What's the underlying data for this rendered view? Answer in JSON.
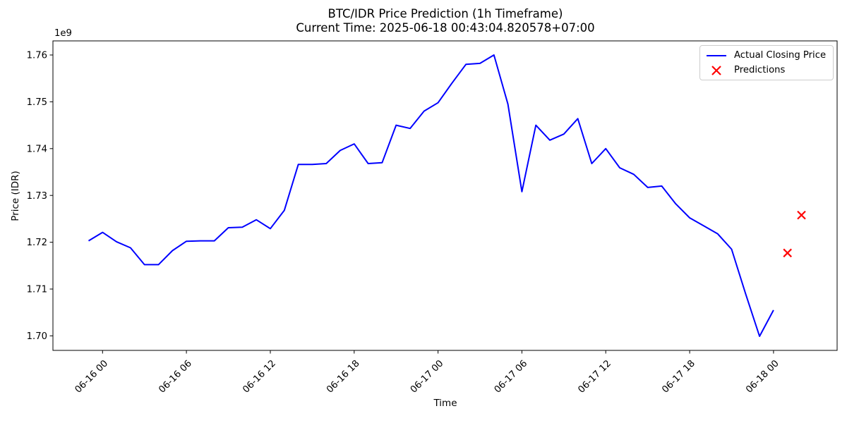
{
  "figure": {
    "background": "#ffffff",
    "spine_color": "#000000"
  },
  "chart_data": {
    "type": "line",
    "title_lines": [
      "BTC/IDR Price Prediction (1h Timeframe)",
      "Current Time: 2025-06-18 00:43:04.820578+07:00"
    ],
    "xlabel": "Time",
    "ylabel": "Price (IDR)",
    "y_offset_label": "1e9",
    "grid": false,
    "legend_position": "upper right",
    "x_tick_labels": [
      "06-16 00",
      "06-16 06",
      "06-16 12",
      "06-16 18",
      "06-17 00",
      "06-17 06",
      "06-17 12",
      "06-17 18",
      "06-18 00"
    ],
    "x_tick_interval_hours": 6,
    "y_tick_labels": [
      "1.70",
      "1.71",
      "1.72",
      "1.73",
      "1.74",
      "1.75",
      "1.76"
    ],
    "ylim": [
      1697000000,
      1763000000
    ],
    "series": [
      {
        "name": "Actual Closing Price",
        "style": "line",
        "color": "#0000ff",
        "x": [
          "2025-06-15T23:00",
          "2025-06-16T00:00",
          "2025-06-16T01:00",
          "2025-06-16T02:00",
          "2025-06-16T03:00",
          "2025-06-16T04:00",
          "2025-06-16T05:00",
          "2025-06-16T06:00",
          "2025-06-16T07:00",
          "2025-06-16T08:00",
          "2025-06-16T09:00",
          "2025-06-16T10:00",
          "2025-06-16T11:00",
          "2025-06-16T12:00",
          "2025-06-16T13:00",
          "2025-06-16T14:00",
          "2025-06-16T15:00",
          "2025-06-16T16:00",
          "2025-06-16T17:00",
          "2025-06-16T18:00",
          "2025-06-16T19:00",
          "2025-06-16T20:00",
          "2025-06-16T21:00",
          "2025-06-16T22:00",
          "2025-06-16T23:00",
          "2025-06-17T00:00",
          "2025-06-17T01:00",
          "2025-06-17T02:00",
          "2025-06-17T03:00",
          "2025-06-17T04:00",
          "2025-06-17T05:00",
          "2025-06-17T06:00",
          "2025-06-17T07:00",
          "2025-06-17T08:00",
          "2025-06-17T09:00",
          "2025-06-17T10:00",
          "2025-06-17T11:00",
          "2025-06-17T12:00",
          "2025-06-17T13:00",
          "2025-06-17T14:00",
          "2025-06-17T15:00",
          "2025-06-17T16:00",
          "2025-06-17T17:00",
          "2025-06-17T18:00",
          "2025-06-17T19:00",
          "2025-06-17T20:00",
          "2025-06-17T21:00",
          "2025-06-17T22:00",
          "2025-06-17T23:00",
          "2025-06-18T00:00"
        ],
        "y": [
          1720300000,
          1722100000,
          1720100000,
          1718800000,
          1715200000,
          1715200000,
          1718200000,
          1720200000,
          1720300000,
          1720300000,
          1723100000,
          1723200000,
          1724800000,
          1722900000,
          1726800000,
          1736600000,
          1736600000,
          1736800000,
          1739600000,
          1741000000,
          1736800000,
          1737000000,
          1745000000,
          1744300000,
          1748000000,
          1749800000,
          1754000000,
          1758000000,
          1758200000,
          1760000000,
          1749500000,
          1730800000,
          1745000000,
          1741800000,
          1743100000,
          1746400000,
          1736800000,
          1740000000,
          1735900000,
          1734500000,
          1731700000,
          1732000000,
          1728200000,
          1725200000,
          1723500000,
          1721800000,
          1718500000,
          1709000000,
          1699900000,
          1705500000
        ]
      },
      {
        "name": "Predictions",
        "style": "x-marker",
        "color": "#ff0000",
        "x": [
          "2025-06-18T01:00",
          "2025-06-18T02:00"
        ],
        "y": [
          1717700000,
          1725800000
        ]
      }
    ]
  }
}
